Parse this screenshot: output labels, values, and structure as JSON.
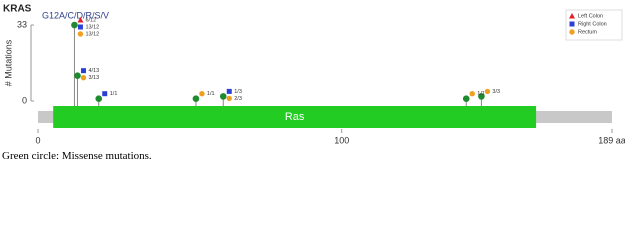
{
  "chart_data": {
    "type": "lollipop",
    "title": "KRAS",
    "annotation": "G12A/C/D/R/S/V",
    "y_label": "# Mutations",
    "xlim": [
      0,
      189
    ],
    "xticks": [
      0,
      100,
      {
        "value": 189,
        "label": "189 aa"
      }
    ],
    "ylim": [
      0,
      33
    ],
    "yticks": [
      0,
      33
    ],
    "color": "#1f8a2e",
    "x": [
      12,
      13,
      20,
      52,
      61,
      141,
      146
    ],
    "values": [
      33,
      11,
      1,
      1,
      2,
      1,
      2
    ],
    "domains": [
      {
        "name": "Ras",
        "start": 5,
        "end": 164,
        "color": "#22cc22"
      }
    ],
    "series": [
      {
        "name": "Left Colon",
        "color": "#e0202a",
        "shape": "triangle",
        "points": [
          {
            "x": 12,
            "label": "6/12"
          }
        ]
      },
      {
        "name": "Right Colon",
        "color": "#2b3fd6",
        "shape": "square",
        "points": [
          {
            "x": 12,
            "label": "13/12"
          },
          {
            "x": 13,
            "label": "4/13"
          },
          {
            "x": 20,
            "label": "1/1"
          },
          {
            "x": 61,
            "label": "1/3"
          }
        ]
      },
      {
        "name": "Rectum",
        "color": "#f0a020",
        "shape": "circle",
        "points": [
          {
            "x": 12,
            "label": "13/12"
          },
          {
            "x": 13,
            "label": "3/13"
          },
          {
            "x": 52,
            "label": "1/1"
          },
          {
            "x": 61,
            "label": "2/3"
          },
          {
            "x": 141,
            "label": "1/1"
          },
          {
            "x": 146,
            "label": "3/3"
          }
        ]
      }
    ],
    "legend": "top-right"
  },
  "caption": "Green circle: Missense mutations."
}
